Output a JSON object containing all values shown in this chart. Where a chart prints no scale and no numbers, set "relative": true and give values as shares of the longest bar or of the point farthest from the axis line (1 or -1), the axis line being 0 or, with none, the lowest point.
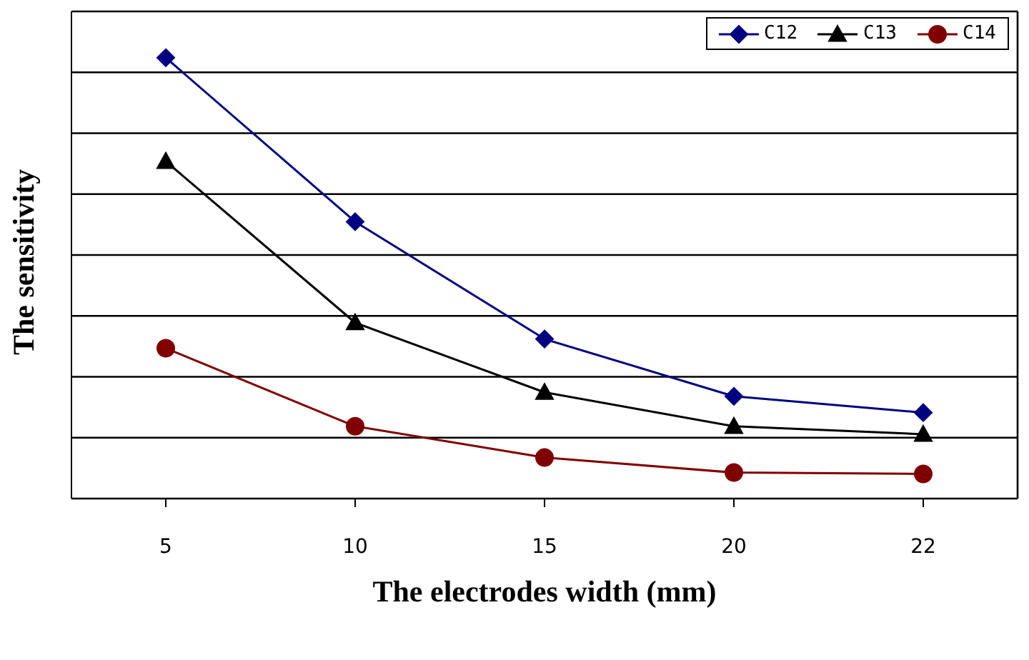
{
  "chart_data": {
    "type": "line",
    "relative": true,
    "xlabel": "The electrodes width (mm)",
    "ylabel": "The sensitivity",
    "categories": [
      "5",
      "10",
      "15",
      "20",
      "22"
    ],
    "series": [
      {
        "name": "C12",
        "color": "#000080",
        "marker": "diamond",
        "values": [
          1,
          0.628,
          0.362,
          0.232,
          0.195
        ]
      },
      {
        "name": "C13",
        "color": "#000000",
        "marker": "triangle",
        "values": [
          0.765,
          0.399,
          0.241,
          0.164,
          0.146
        ]
      },
      {
        "name": "C14",
        "color": "#800000",
        "marker": "circle",
        "values": [
          0.341,
          0.164,
          0.093,
          0.059,
          0.056
        ]
      }
    ],
    "grid": "y",
    "legend": "top right",
    "line_style": "solid"
  }
}
